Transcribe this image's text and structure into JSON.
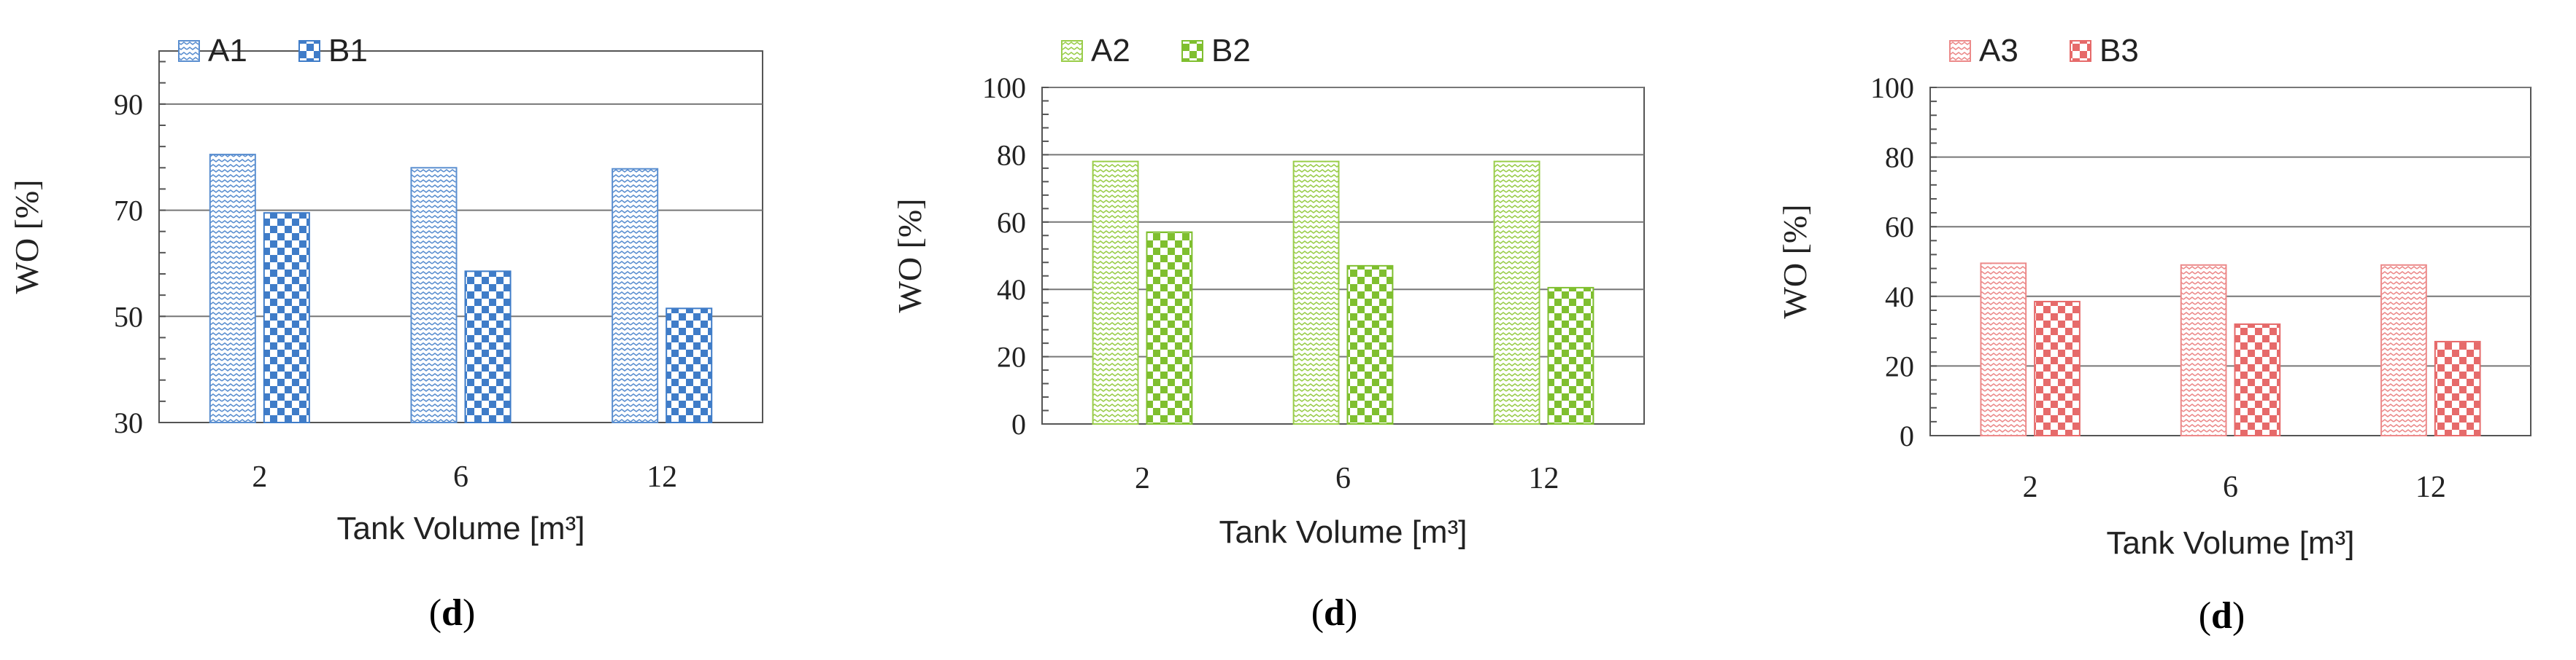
{
  "chart_data": [
    {
      "type": "bar",
      "panel_label": "d",
      "categories": [
        "2",
        "6",
        "12"
      ],
      "series": [
        {
          "name": "A1",
          "values": [
            80.5,
            78,
            77.8
          ]
        },
        {
          "name": "B1",
          "values": [
            69.5,
            58.5,
            51.5
          ]
        }
      ],
      "xlabel": "Tank Volume [m³]",
      "ylabel": "WO [%]",
      "ylim": [
        30,
        100
      ],
      "yticks": [
        30,
        50,
        70,
        90
      ],
      "grid": true,
      "legend": "top-left",
      "colors": {
        "A": "#5b8fd0",
        "B": "#3f7cc8"
      }
    },
    {
      "type": "bar",
      "panel_label": "d",
      "categories": [
        "2",
        "6",
        "12"
      ],
      "series": [
        {
          "name": "A2",
          "values": [
            78,
            78,
            78
          ]
        },
        {
          "name": "B2",
          "values": [
            57,
            47,
            40.5
          ]
        }
      ],
      "xlabel": "Tank Volume [m³]",
      "ylabel": "WO [%]",
      "ylim": [
        0,
        100
      ],
      "yticks": [
        0,
        20,
        40,
        60,
        80,
        100
      ],
      "grid": true,
      "legend": "top-left",
      "colors": {
        "A": "#9acd4a",
        "B": "#7fbf2f"
      }
    },
    {
      "type": "bar",
      "panel_label": "d",
      "categories": [
        "2",
        "6",
        "12"
      ],
      "series": [
        {
          "name": "A3",
          "values": [
            49.5,
            49,
            49
          ]
        },
        {
          "name": "B3",
          "values": [
            38.5,
            32,
            27
          ]
        }
      ],
      "xlabel": "Tank Volume [m³]",
      "ylabel": "WO [%]",
      "ylim": [
        0,
        100
      ],
      "yticks": [
        0,
        20,
        40,
        60,
        80,
        100
      ],
      "grid": true,
      "legend": "top-left",
      "colors": {
        "A": "#ec8a8a",
        "B": "#e66a6a"
      }
    }
  ]
}
